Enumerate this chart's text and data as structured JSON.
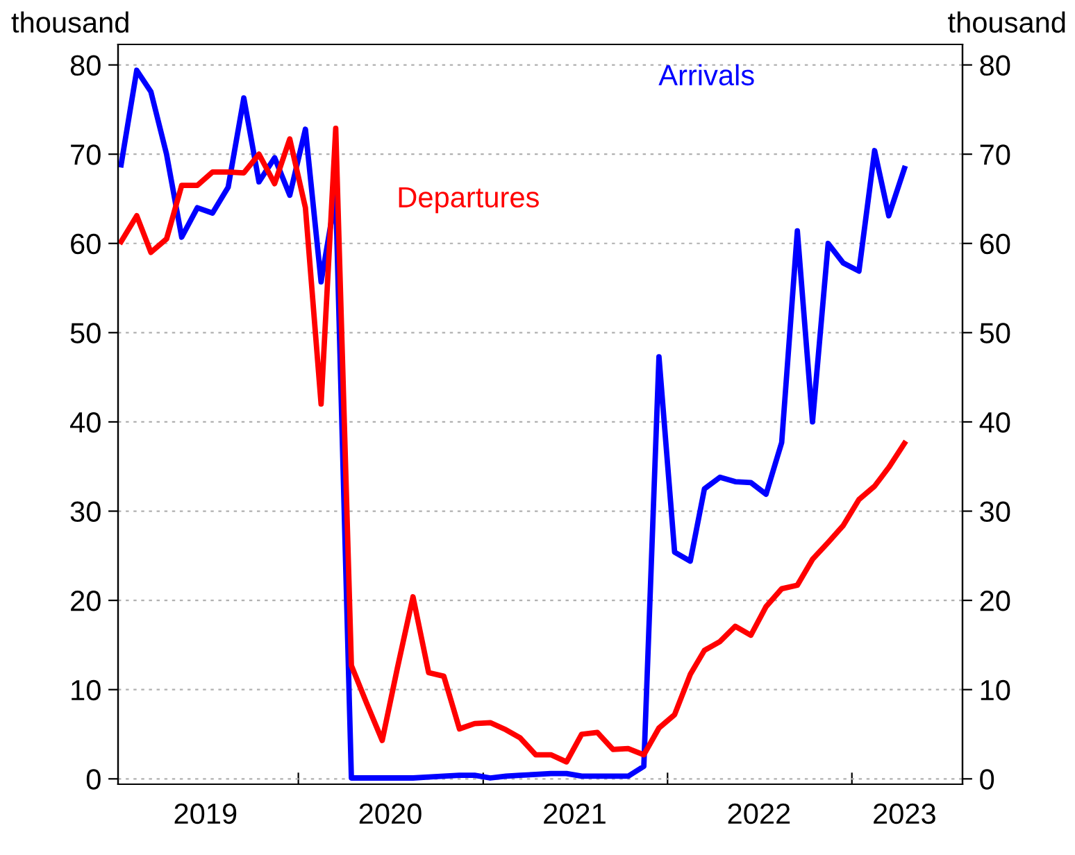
{
  "chart_data": {
    "type": "line",
    "ylabel": "thousand",
    "y2label": "thousand",
    "x": [
      "2019-01-15",
      "2019-02-15",
      "2019-03-15",
      "2019-04-15",
      "2019-05-15",
      "2019-06-15",
      "2019-07-15",
      "2019-08-15",
      "2019-09-15",
      "2019-10-15",
      "2019-11-15",
      "2019-12-15",
      "2020-01-15",
      "2020-02-15",
      "2020-03-15",
      "2020-04-15",
      "2020-05-15",
      "2020-06-15",
      "2020-07-15",
      "2020-08-15",
      "2020-09-15",
      "2020-10-15",
      "2020-11-15",
      "2020-12-15",
      "2021-01-15",
      "2021-02-15",
      "2021-03-15",
      "2021-04-15",
      "2021-05-15",
      "2021-06-15",
      "2021-07-15",
      "2021-08-15",
      "2021-09-15",
      "2021-10-15",
      "2021-11-15",
      "2021-12-15",
      "2022-01-15",
      "2022-02-15",
      "2022-03-15",
      "2022-04-15",
      "2022-05-15",
      "2022-06-15",
      "2022-07-15",
      "2022-08-15",
      "2022-09-15",
      "2022-10-15",
      "2022-11-15",
      "2022-12-15",
      "2023-01-15",
      "2023-02-15",
      "2023-03-15",
      "2023-04-15"
    ],
    "series": [
      {
        "name": "Arrivals",
        "color": "#0000ff",
        "values": [
          68.8,
          79.4,
          77.0,
          70.0,
          60.7,
          64.0,
          63.4,
          66.3,
          76.3,
          66.9,
          69.6,
          65.4,
          72.8,
          55.7,
          65.4,
          0.1,
          0.1,
          0.1,
          0.1,
          0.1,
          0.2,
          0.3,
          0.4,
          0.4,
          0.1,
          0.3,
          0.4,
          0.5,
          0.6,
          0.6,
          0.3,
          0.3,
          0.3,
          0.3,
          1.4,
          47.3,
          25.4,
          24.4,
          32.5,
          33.8,
          33.3,
          33.2,
          31.9,
          37.7,
          61.4,
          40.0,
          60.0,
          57.8,
          56.9,
          70.4,
          63.1,
          68.4
        ]
      },
      {
        "name": "Departures",
        "color": "#ff0000",
        "values": [
          60.2,
          63.1,
          59.0,
          60.5,
          66.5,
          66.5,
          68.0,
          68.0,
          67.9,
          70.0,
          66.7,
          71.7,
          64.0,
          42.0,
          72.9,
          12.7,
          8.5,
          4.3,
          12.4,
          20.4,
          11.9,
          11.5,
          5.6,
          6.2,
          6.3,
          5.5,
          4.6,
          2.7,
          2.7,
          1.9,
          5.0,
          5.2,
          3.3,
          3.4,
          2.7,
          5.7,
          7.2,
          11.7,
          14.4,
          15.4,
          17.1,
          16.1,
          19.3,
          21.3,
          21.7,
          24.6,
          26.5,
          28.4,
          31.3,
          32.8,
          34.9,
          37.6
        ]
      }
    ],
    "xlim": [
      "2019-01-09",
      "2023-08-08"
    ],
    "xticks": [
      {
        "value": "2019-07-01",
        "label": "2019"
      },
      {
        "value": "2020-01-01",
        "label": null
      },
      {
        "value": "2020-07-01",
        "label": "2020"
      },
      {
        "value": "2021-01-01",
        "label": null
      },
      {
        "value": "2021-07-01",
        "label": "2021"
      },
      {
        "value": "2022-01-01",
        "label": null
      },
      {
        "value": "2022-07-01",
        "label": "2022"
      },
      {
        "value": "2023-01-01",
        "label": null
      },
      {
        "value": "2023-04-15",
        "label": "2023"
      }
    ],
    "ylim": [
      -0.6,
      82.3
    ],
    "yticks": [
      0,
      10,
      20,
      30,
      40,
      50,
      60,
      70,
      80
    ],
    "y2lim": [
      -0.6,
      82.3
    ],
    "y2ticks": [
      0,
      10,
      20,
      30,
      40,
      50,
      60,
      70,
      80
    ],
    "grid": "y",
    "legend": false,
    "marker": "none",
    "line_style": "solid"
  }
}
